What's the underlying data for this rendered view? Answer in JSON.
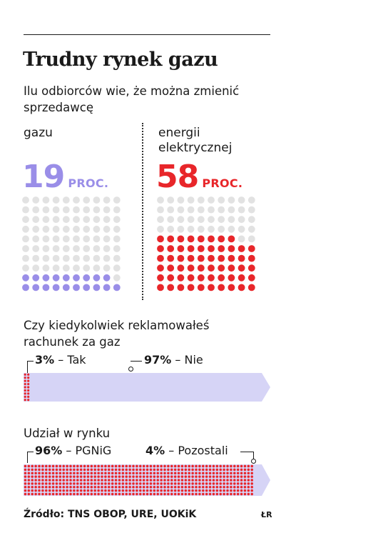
{
  "title": "Trudny rynek gazu",
  "subtitle": "Ilu odbiorców wie, że można zmienić sprzedawcę",
  "colors": {
    "gas": "#9a8ee8",
    "electric": "#e8262a",
    "empty": "#e2e2e2",
    "bar_bg": "#d6d4f6",
    "text": "#1a1a1a"
  },
  "chart_data": [
    {
      "type": "waffle",
      "panels": [
        {
          "label_lines": [
            "gazu"
          ],
          "value": 19,
          "unit": "PROC.",
          "total": 100,
          "color": "#9a8ee8"
        },
        {
          "label_lines": [
            "energii",
            "elektrycznej"
          ],
          "value": 58,
          "unit": "PROC.",
          "total": 100,
          "color": "#e8262a"
        }
      ]
    },
    {
      "type": "bar",
      "stacked": true,
      "title_lines": [
        "Czy kiedykolwiek reklamowałeś",
        "rachunek za gaz"
      ],
      "segments": [
        {
          "value": "3%",
          "label": "Tak",
          "share": 3
        },
        {
          "value": "97%",
          "label": "Nie",
          "share": 97
        }
      ]
    },
    {
      "type": "bar",
      "stacked": true,
      "title_lines": [
        "Udział w rynku"
      ],
      "segments": [
        {
          "value": "96%",
          "label": "PGNiG",
          "share": 96
        },
        {
          "value": "4%",
          "label": "Pozostali",
          "share": 4
        }
      ]
    }
  ],
  "source": "Źródło: TNS OBOP, URE, UOKiK",
  "credit": "ŁR"
}
